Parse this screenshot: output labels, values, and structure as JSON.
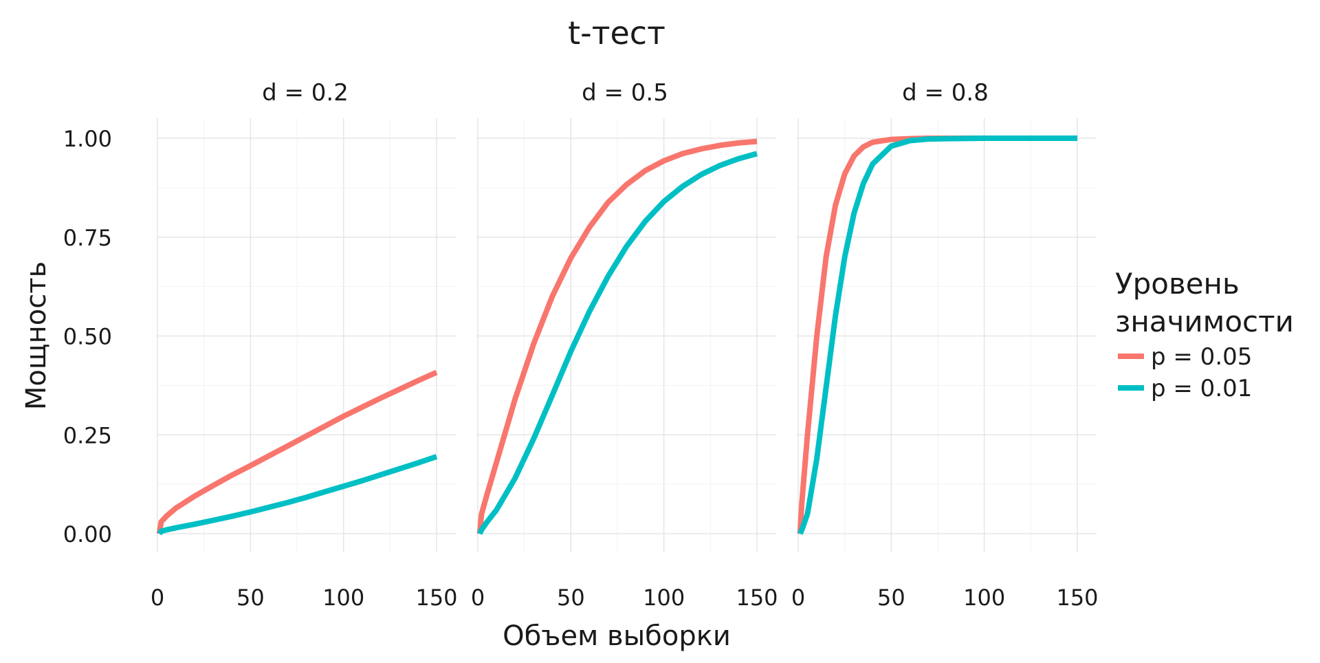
{
  "chart_data": {
    "type": "line",
    "title": "t-тест",
    "xlabel": "Объем выборки",
    "ylabel": "Мощность",
    "xlim": [
      0,
      150
    ],
    "ylim": [
      0,
      1
    ],
    "x_ticks": [
      "0",
      "50",
      "100",
      "150"
    ],
    "y_ticks": [
      "0.00",
      "0.25",
      "0.50",
      "0.75",
      "1.00"
    ],
    "grid": true,
    "legend": {
      "title": "Уровень значимости",
      "title_lines": [
        "Уровень",
        "значимости"
      ],
      "position": "right"
    },
    "panels": [
      {
        "label": "d = 0.2",
        "series": [
          {
            "name": "p = 0.05",
            "color": "#F8766D",
            "x": [
              1,
              2,
              5,
              10,
              20,
              30,
              40,
              50,
              60,
              70,
              80,
              90,
              100,
              110,
              120,
              130,
              140,
              150
            ],
            "y": [
              0.0,
              0.03,
              0.045,
              0.065,
              0.095,
              0.122,
              0.148,
              0.172,
              0.197,
              0.222,
              0.247,
              0.272,
              0.297,
              0.32,
              0.343,
              0.365,
              0.387,
              0.408
            ]
          },
          {
            "name": "p = 0.01",
            "color": "#00BFC4",
            "x": [
              1,
              2,
              5,
              10,
              20,
              30,
              40,
              50,
              60,
              70,
              80,
              90,
              100,
              110,
              120,
              130,
              140,
              150
            ],
            "y": [
              0.0,
              0.006,
              0.01,
              0.015,
              0.024,
              0.034,
              0.044,
              0.055,
              0.067,
              0.079,
              0.092,
              0.106,
              0.12,
              0.134,
              0.149,
              0.164,
              0.179,
              0.195
            ]
          }
        ]
      },
      {
        "label": "d = 0.5",
        "series": [
          {
            "name": "p = 0.05",
            "color": "#F8766D",
            "x": [
              1,
              2,
              5,
              10,
              20,
              30,
              40,
              50,
              60,
              70,
              80,
              90,
              100,
              110,
              120,
              130,
              140,
              150
            ],
            "y": [
              0.0,
              0.05,
              0.1,
              0.18,
              0.34,
              0.48,
              0.6,
              0.697,
              0.775,
              0.838,
              0.883,
              0.918,
              0.943,
              0.961,
              0.973,
              0.982,
              0.988,
              0.992
            ]
          },
          {
            "name": "p = 0.01",
            "color": "#00BFC4",
            "x": [
              1,
              2,
              5,
              10,
              20,
              30,
              40,
              50,
              60,
              70,
              80,
              90,
              100,
              110,
              120,
              130,
              140,
              150
            ],
            "y": [
              0.0,
              0.01,
              0.03,
              0.06,
              0.14,
              0.24,
              0.35,
              0.461,
              0.562,
              0.651,
              0.727,
              0.79,
              0.84,
              0.878,
              0.908,
              0.931,
              0.948,
              0.961
            ]
          }
        ]
      },
      {
        "label": "d = 0.8",
        "series": [
          {
            "name": "p = 0.05",
            "color": "#F8766D",
            "x": [
              1,
              2,
              5,
              10,
              15,
              20,
              25,
              30,
              35,
              40,
              50,
              60,
              70,
              80,
              100,
              125,
              150
            ],
            "y": [
              0.0,
              0.08,
              0.25,
              0.5,
              0.7,
              0.83,
              0.91,
              0.955,
              0.978,
              0.99,
              0.997,
              0.999,
              1.0,
              1.0,
              1.0,
              1.0,
              1.0
            ]
          },
          {
            "name": "p = 0.01",
            "color": "#00BFC4",
            "x": [
              1,
              2,
              5,
              10,
              15,
              20,
              25,
              30,
              35,
              40,
              50,
              60,
              70,
              80,
              100,
              125,
              150
            ],
            "y": [
              0.0,
              0.01,
              0.05,
              0.19,
              0.37,
              0.55,
              0.7,
              0.81,
              0.885,
              0.935,
              0.98,
              0.994,
              0.998,
              0.999,
              1.0,
              1.0,
              1.0
            ]
          }
        ]
      }
    ]
  }
}
